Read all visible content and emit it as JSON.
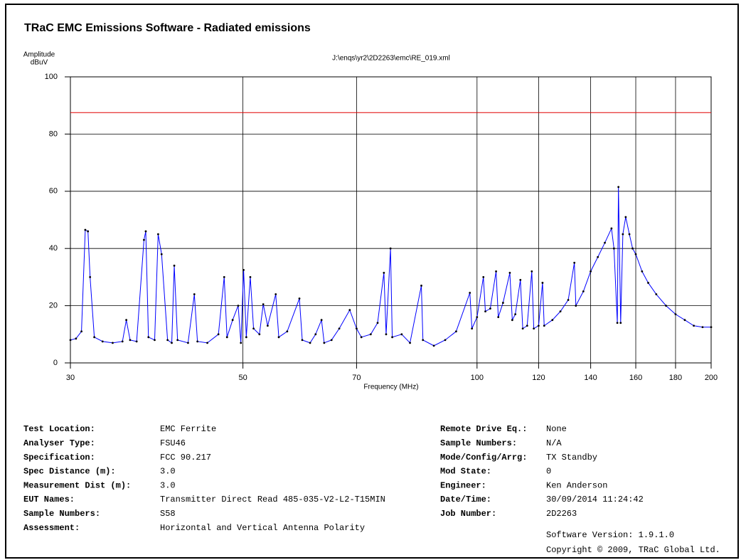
{
  "chart_data": {
    "type": "line",
    "title": "TRaC EMC Emissions Software - Radiated emissions",
    "subtitle": "J:\\enqs\\yr2\\2D2263\\emc\\RE_019.xml",
    "ylabel": [
      "Amplitude",
      "dBuV"
    ],
    "xlabel": "Frequency (MHz)",
    "xscale": "log",
    "xlim": [
      30,
      200
    ],
    "xticks": [
      30,
      50,
      70,
      100,
      120,
      140,
      160,
      180,
      200
    ],
    "ylim": [
      0,
      100
    ],
    "yticks": [
      0,
      20,
      40,
      60,
      80,
      100
    ],
    "grid": true,
    "limit": {
      "value": 87.5,
      "color": "#e00000"
    },
    "x": [
      30,
      30.5,
      31,
      31.35,
      31.6,
      31.8,
      32.2,
      33,
      34,
      35,
      35.4,
      35.8,
      36.5,
      37.3,
      37.5,
      37.8,
      38.5,
      38.9,
      39.3,
      40,
      40.5,
      40.8,
      41.2,
      42.5,
      43.3,
      43.7,
      45,
      46.5,
      47.3,
      47.7,
      48.5,
      49.3,
      49.7,
      50.1,
      50.5,
      51.1,
      51.6,
      52.5,
      53.1,
      53.8,
      55.1,
      55.6,
      57,
      59.1,
      59.6,
      61,
      62,
      63.1,
      63.6,
      65,
      66.5,
      68.6,
      70,
      71,
      73,
      74.5,
      75.9,
      76.4,
      77.4,
      77.8,
      80,
      82,
      84.8,
      85.2,
      88,
      91,
      94,
      97.9,
      98.5,
      100,
      101.9,
      102.5,
      104,
      105.8,
      106.5,
      108,
      110.2,
      111,
      112,
      113.7,
      114.5,
      116,
      117.6,
      118.3,
      120,
      121.4,
      122,
      125,
      128,
      131,
      133.4,
      134,
      137,
      140,
      143,
      146,
      148.9,
      150,
      151.5,
      152,
      153,
      154,
      155.3,
      157,
      158.5,
      160,
      163,
      166,
      170,
      175,
      180,
      185,
      190,
      195,
      200
    ],
    "series": [
      {
        "color": "#0000ff",
        "marker_color": "#000000",
        "values": [
          8,
          8.5,
          11,
          46.5,
          46,
          30,
          9,
          7.5,
          7,
          7.5,
          15,
          8,
          7.5,
          43,
          46,
          9,
          8,
          45,
          38,
          8,
          7,
          34,
          8,
          7,
          24,
          7.5,
          7,
          10,
          30,
          9,
          15,
          20,
          7,
          32.5,
          9,
          30,
          12,
          10,
          20.5,
          13,
          24,
          9,
          11,
          22.5,
          8,
          7,
          10,
          15,
          7,
          8,
          12,
          18.5,
          12,
          9,
          10,
          14,
          31.5,
          10,
          40,
          9,
          10,
          7,
          27,
          8,
          6,
          8,
          11,
          24.5,
          12,
          16,
          30,
          18,
          19,
          32,
          16,
          21,
          31.5,
          15,
          17,
          29,
          12,
          13,
          32,
          12,
          13,
          28,
          13,
          15,
          18,
          22,
          35,
          20,
          25,
          32,
          37,
          42,
          47,
          40,
          14,
          61.5,
          14,
          45,
          51,
          45,
          40,
          38,
          32,
          28,
          24,
          20,
          17,
          15,
          13,
          12.5,
          12.5
        ]
      }
    ]
  },
  "info": {
    "left": [
      {
        "label": "Test Location:",
        "value": "EMC Ferrite"
      },
      {
        "label": "Analyser Type:",
        "value": "FSU46"
      },
      {
        "label": "Specification:",
        "value": "FCC 90.217"
      },
      {
        "label": "Spec Distance (m):",
        "value": "3.0"
      },
      {
        "label": "Measurement Dist (m):",
        "value": "3.0"
      },
      {
        "label": "EUT Names:",
        "value": "Transmitter Direct Read 485-035-V2-L2-T15MIN"
      },
      {
        "label": "Sample Numbers:",
        "value": "S58"
      },
      {
        "label": "Assessment:",
        "value": "Horizontal and Vertical Antenna Polarity"
      }
    ],
    "right": [
      {
        "label": "Remote Drive Eq.:",
        "value": "None"
      },
      {
        "label": "Sample Numbers:",
        "value": "N/A"
      },
      {
        "label": "Mode/Config/Arrg:",
        "value": "TX Standby"
      },
      {
        "label": "Mod State:",
        "value": "0"
      },
      {
        "label": "Engineer:",
        "value": "Ken Anderson"
      },
      {
        "label": "Date/Time:",
        "value": "30/09/2014 11:24:42"
      },
      {
        "label": "Job Number:",
        "value": "2D2263"
      }
    ]
  },
  "footer": {
    "version": "Software Version: 1.9.1.0",
    "copyright": "Copyright © 2009, TRaC Global Ltd."
  }
}
